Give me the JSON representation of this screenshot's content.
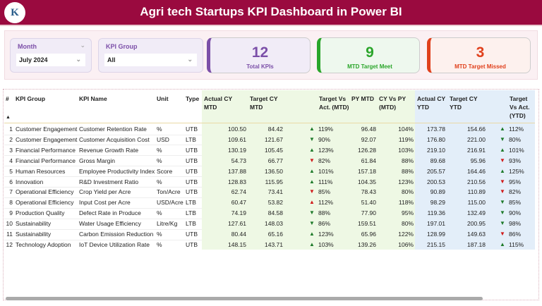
{
  "header": {
    "title": "Agri tech Startups KPI Dashboard in Power BI",
    "logo_text": "K"
  },
  "filters": {
    "month": {
      "label": "Month",
      "value": "July 2024"
    },
    "kpi_group": {
      "label": "KPI Group",
      "value": "All"
    }
  },
  "cards": [
    {
      "value": "12",
      "label": "Total KPIs",
      "color": "#7b4fa8"
    },
    {
      "value": "9",
      "label": "MTD Target Meet",
      "color": "#2aa52a"
    },
    {
      "value": "3",
      "label": "MTD Target Missed",
      "color": "#e0401c"
    }
  ],
  "table": {
    "columns": [
      "#",
      "KPI Group",
      "KPI Name",
      "Unit",
      "Type",
      "Actual CY MTD",
      "Target CY MTD",
      "Target Vs Act. (MTD)",
      "PY MTD",
      "CY Vs PY (MTD)",
      "Actual CY YTD",
      "Target CY YTD",
      "Target Vs Act. (YTD)"
    ],
    "sort_indicator": "▲",
    "colors": {
      "good": "#1e7a2a",
      "bad": "#d01a1a"
    },
    "rows": [
      {
        "n": "1",
        "group": "Customer Engagement",
        "name": "Customer Retention Rate",
        "unit": "%",
        "type": "UTB",
        "act_mtd": "100.50",
        "tgt_mtd": "84.42",
        "tva_mtd": "119%",
        "tva_mtd_icon": "up-good",
        "py_mtd": "96.48",
        "cy_vs_py": "104%",
        "act_ytd": "173.78",
        "tgt_ytd": "154.66",
        "tva_ytd": "112%",
        "tva_ytd_icon": "up-good"
      },
      {
        "n": "2",
        "group": "Customer Engagement",
        "name": "Customer Acquisition Cost",
        "unit": "USD",
        "type": "LTB",
        "act_mtd": "109.61",
        "tgt_mtd": "121.67",
        "tva_mtd": "90%",
        "tva_mtd_icon": "down-good",
        "py_mtd": "92.07",
        "cy_vs_py": "119%",
        "act_ytd": "176.80",
        "tgt_ytd": "221.00",
        "tva_ytd": "80%",
        "tva_ytd_icon": "down-good"
      },
      {
        "n": "3",
        "group": "Financial Performance",
        "name": "Revenue Growth Rate",
        "unit": "%",
        "type": "UTB",
        "act_mtd": "130.19",
        "tgt_mtd": "105.45",
        "tva_mtd": "123%",
        "tva_mtd_icon": "up-good",
        "py_mtd": "126.28",
        "cy_vs_py": "103%",
        "act_ytd": "219.10",
        "tgt_ytd": "216.91",
        "tva_ytd": "101%",
        "tva_ytd_icon": "up-good"
      },
      {
        "n": "4",
        "group": "Financial Performance",
        "name": "Gross Margin",
        "unit": "%",
        "type": "UTB",
        "act_mtd": "54.73",
        "tgt_mtd": "66.77",
        "tva_mtd": "82%",
        "tva_mtd_icon": "down-bad",
        "py_mtd": "61.84",
        "cy_vs_py": "88%",
        "act_ytd": "89.68",
        "tgt_ytd": "95.96",
        "tva_ytd": "93%",
        "tva_ytd_icon": "down-bad"
      },
      {
        "n": "5",
        "group": "Human Resources",
        "name": "Employee Productivity Index",
        "unit": "Score",
        "type": "UTB",
        "act_mtd": "137.88",
        "tgt_mtd": "136.50",
        "tva_mtd": "101%",
        "tva_mtd_icon": "up-good",
        "py_mtd": "157.18",
        "cy_vs_py": "88%",
        "act_ytd": "205.57",
        "tgt_ytd": "164.46",
        "tva_ytd": "125%",
        "tva_ytd_icon": "up-good"
      },
      {
        "n": "6",
        "group": "Innovation",
        "name": "R&D Investment Ratio",
        "unit": "%",
        "type": "UTB",
        "act_mtd": "128.83",
        "tgt_mtd": "115.95",
        "tva_mtd": "111%",
        "tva_mtd_icon": "up-good",
        "py_mtd": "104.35",
        "cy_vs_py": "123%",
        "act_ytd": "200.53",
        "tgt_ytd": "210.56",
        "tva_ytd": "95%",
        "tva_ytd_icon": "down-bad"
      },
      {
        "n": "7",
        "group": "Operational Efficiency",
        "name": "Crop Yield per Acre",
        "unit": "Ton/Acre",
        "type": "UTB",
        "act_mtd": "62.74",
        "tgt_mtd": "73.41",
        "tva_mtd": "85%",
        "tva_mtd_icon": "down-bad",
        "py_mtd": "78.43",
        "cy_vs_py": "80%",
        "act_ytd": "90.89",
        "tgt_ytd": "110.89",
        "tva_ytd": "82%",
        "tva_ytd_icon": "down-bad"
      },
      {
        "n": "8",
        "group": "Operational Efficiency",
        "name": "Input Cost per Acre",
        "unit": "USD/Acre",
        "type": "LTB",
        "act_mtd": "60.47",
        "tgt_mtd": "53.82",
        "tva_mtd": "112%",
        "tva_mtd_icon": "up-bad",
        "py_mtd": "51.40",
        "cy_vs_py": "118%",
        "act_ytd": "98.29",
        "tgt_ytd": "115.00",
        "tva_ytd": "85%",
        "tva_ytd_icon": "down-good"
      },
      {
        "n": "9",
        "group": "Production Quality",
        "name": "Defect Rate in Produce",
        "unit": "%",
        "type": "LTB",
        "act_mtd": "74.19",
        "tgt_mtd": "84.58",
        "tva_mtd": "88%",
        "tva_mtd_icon": "down-good",
        "py_mtd": "77.90",
        "cy_vs_py": "95%",
        "act_ytd": "119.36",
        "tgt_ytd": "132.49",
        "tva_ytd": "90%",
        "tva_ytd_icon": "down-good"
      },
      {
        "n": "10",
        "group": "Sustainability",
        "name": "Water Usage Efficiency",
        "unit": "Litre/Kg",
        "type": "LTB",
        "act_mtd": "127.61",
        "tgt_mtd": "148.03",
        "tva_mtd": "86%",
        "tva_mtd_icon": "down-good",
        "py_mtd": "159.51",
        "cy_vs_py": "80%",
        "act_ytd": "197.01",
        "tgt_ytd": "200.95",
        "tva_ytd": "98%",
        "tva_ytd_icon": "down-good"
      },
      {
        "n": "11",
        "group": "Sustainability",
        "name": "Carbon Emission Reduction",
        "unit": "%",
        "type": "UTB",
        "act_mtd": "80.44",
        "tgt_mtd": "65.16",
        "tva_mtd": "123%",
        "tva_mtd_icon": "up-good",
        "py_mtd": "65.96",
        "cy_vs_py": "122%",
        "act_ytd": "128.99",
        "tgt_ytd": "149.63",
        "tva_ytd": "86%",
        "tva_ytd_icon": "down-bad"
      },
      {
        "n": "12",
        "group": "Technology Adoption",
        "name": "IoT Device Utilization Rate",
        "unit": "%",
        "type": "UTB",
        "act_mtd": "148.15",
        "tgt_mtd": "143.71",
        "tva_mtd": "103%",
        "tva_mtd_icon": "up-good",
        "py_mtd": "139.26",
        "cy_vs_py": "106%",
        "act_ytd": "215.15",
        "tgt_ytd": "187.18",
        "tva_ytd": "115%",
        "tva_ytd_icon": "up-good"
      }
    ]
  }
}
